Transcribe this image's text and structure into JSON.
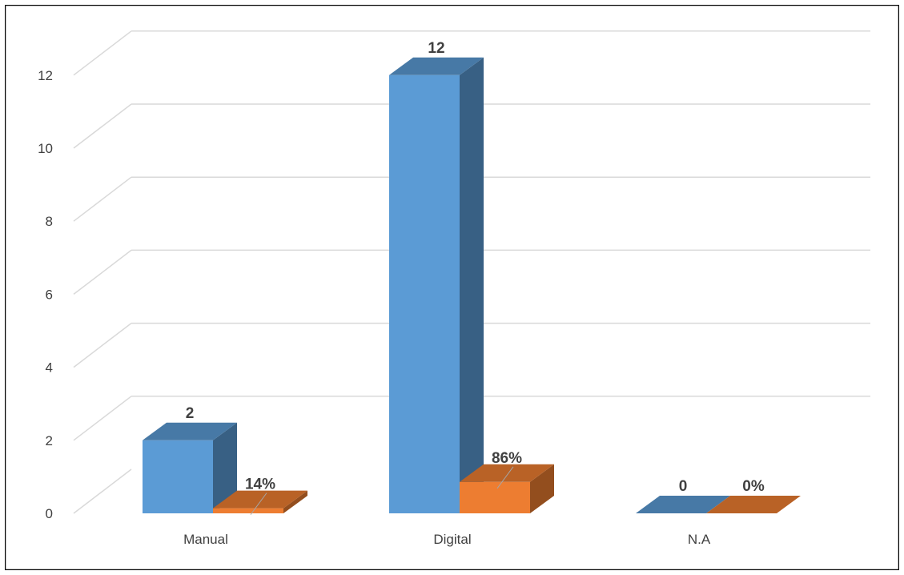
{
  "chart_data": {
    "type": "bar",
    "style": "3d-clustered-column",
    "categories": [
      "Manual",
      "Digital",
      "N.A"
    ],
    "series": [
      {
        "values": [
          2,
          12,
          0
        ],
        "data_labels": [
          "2",
          "12",
          "0"
        ],
        "color": "#5B9BD5"
      },
      {
        "values": [
          0.14,
          0.86,
          0
        ],
        "data_labels": [
          "14%",
          "86%",
          "0%"
        ],
        "color": "#ED7D31"
      }
    ],
    "y_ticks": [
      "0",
      "2",
      "4",
      "6",
      "8",
      "10",
      "12"
    ],
    "ylim": [
      0,
      13
    ],
    "grid": true,
    "legend": "none"
  }
}
